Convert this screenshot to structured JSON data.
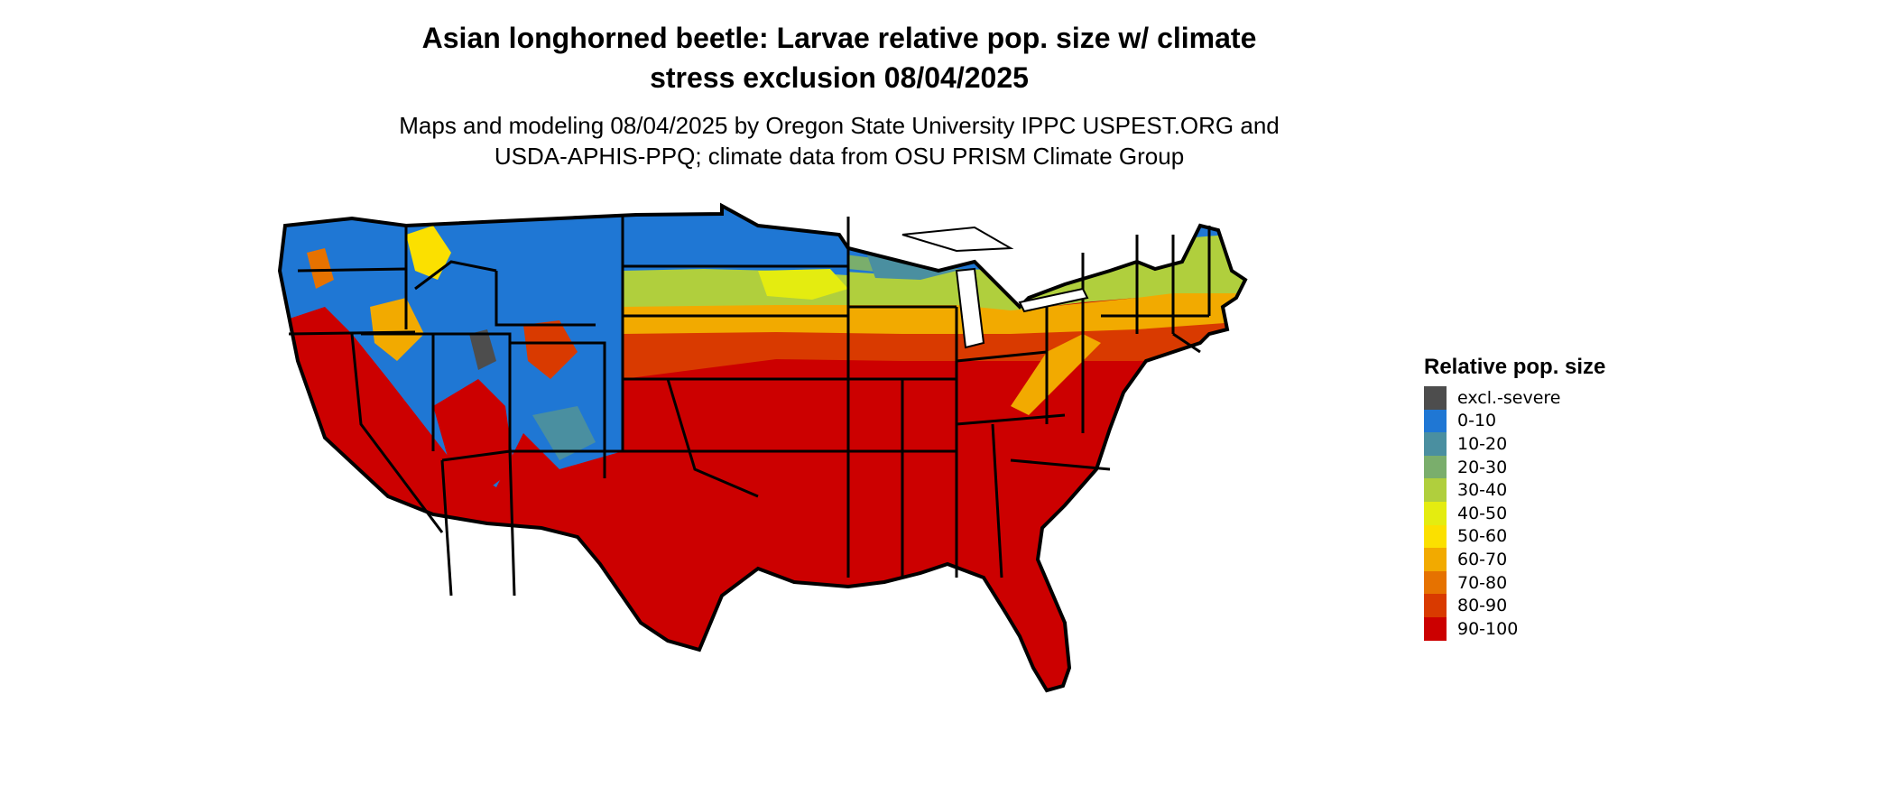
{
  "title_line1": "Asian longhorned beetle: Larvae relative pop. size w/ climate",
  "title_line2": "stress exclusion 08/04/2025",
  "subtitle_line1": "Maps and modeling 08/04/2025 by Oregon State University IPPC USPEST.ORG and",
  "subtitle_line2": "USDA-APHIS-PPQ; climate data from OSU PRISM Climate Group",
  "legend": {
    "title": "Relative pop. size",
    "items": [
      {
        "label": "excl.-severe",
        "color": "#4d4d4d"
      },
      {
        "label": "0-10",
        "color": "#1f77d4"
      },
      {
        "label": "10-20",
        "color": "#4a8fa0"
      },
      {
        "label": "20-30",
        "color": "#7aae6c"
      },
      {
        "label": "30-40",
        "color": "#b0cf3d"
      },
      {
        "label": "40-50",
        "color": "#e4ec10"
      },
      {
        "label": "50-60",
        "color": "#fbe000"
      },
      {
        "label": "60-70",
        "color": "#f2aa00"
      },
      {
        "label": "70-80",
        "color": "#e67200"
      },
      {
        "label": "80-90",
        "color": "#d93a00"
      },
      {
        "label": "90-100",
        "color": "#cc0000"
      }
    ]
  }
}
